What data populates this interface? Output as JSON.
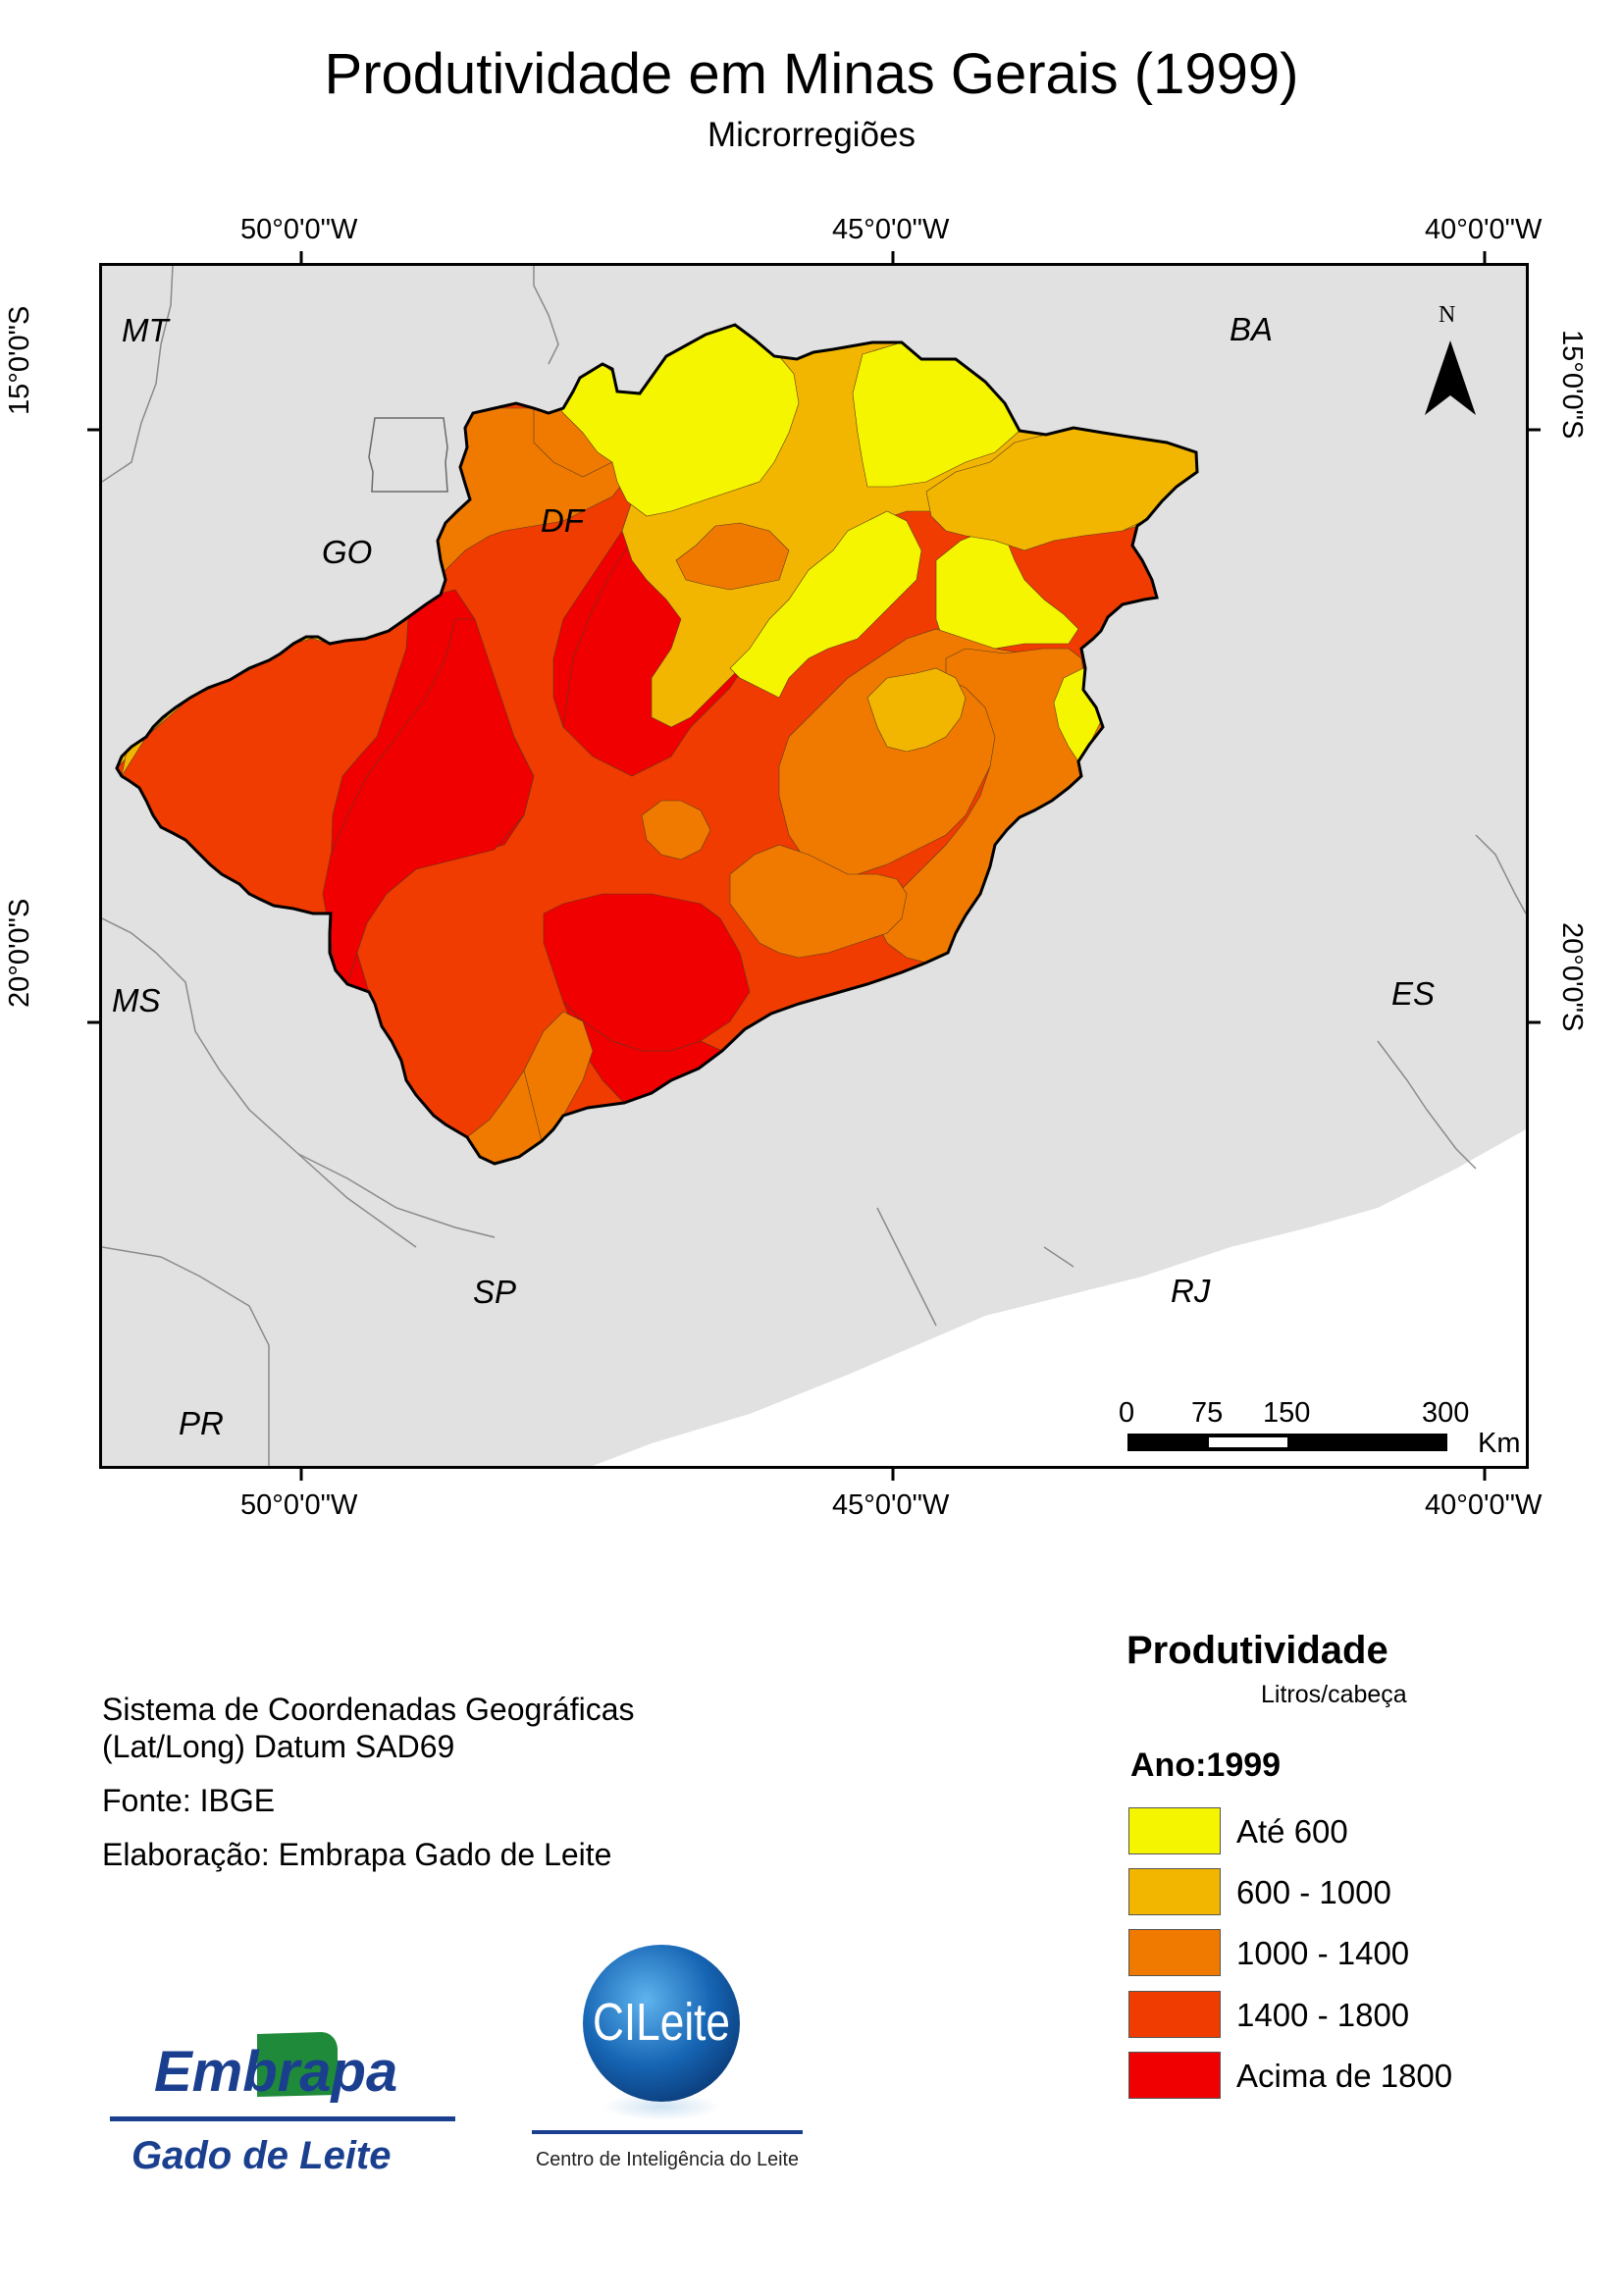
{
  "title": "Produtividade em Minas Gerais (1999)",
  "subtitle": "Microrregiões",
  "coords": {
    "lon": [
      "50°0'0\"W",
      "45°0'0\"W",
      "40°0'0\"W"
    ],
    "lat": [
      "15°0'0\"S",
      "20°0'0\"S"
    ]
  },
  "map_labels": {
    "mt": "MT",
    "go": "GO",
    "df": "DF",
    "ba": "BA",
    "ms": "MS",
    "es": "ES",
    "sp": "SP",
    "rj": "RJ",
    "pr": "PR"
  },
  "north": "N",
  "scale": {
    "ticks": [
      "0",
      "75",
      "150",
      "300"
    ],
    "unit": "Km"
  },
  "info": {
    "crs_line1": "Sistema de Coordenadas Geográficas",
    "crs_line2": "(Lat/Long) Datum SAD69",
    "source": "Fonte: IBGE",
    "author": "Elaboração: Embrapa Gado de Leite"
  },
  "legend": {
    "title": "Produtividade",
    "unit": "Litros/cabeça",
    "year": "Ano:1999",
    "classes": [
      {
        "label": "Até 600",
        "color": "#f5f500"
      },
      {
        "label": "600 - 1000",
        "color": "#f2b600"
      },
      {
        "label": "1000 - 1400",
        "color": "#f07a00"
      },
      {
        "label": "1400 - 1800",
        "color": "#f03c00"
      },
      {
        "label": "Acima de 1800",
        "color": "#f00000"
      }
    ]
  },
  "logos": {
    "embrapa_top": "Embrapa",
    "embrapa_bottom": "Gado de Leite",
    "cileite": "CILeite",
    "cileite_caption": "Centro de Inteligência do Leite"
  }
}
